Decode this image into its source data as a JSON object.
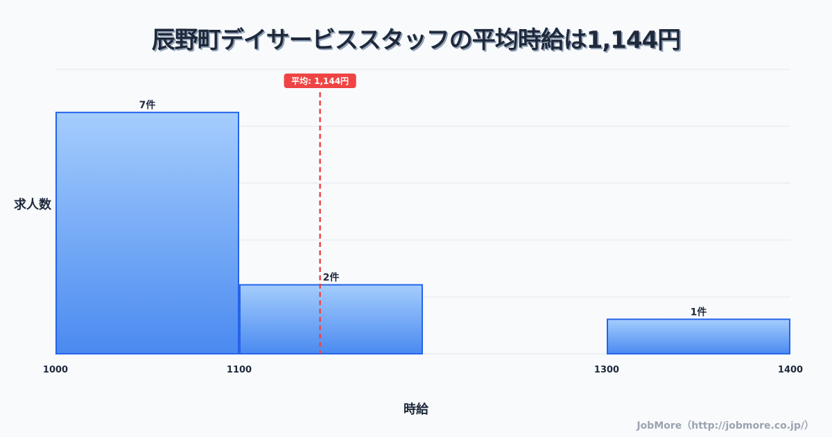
{
  "chart_data": {
    "type": "bar",
    "title": "辰野町デイサービススタッフの平均時給は1,144円",
    "xlabel": "時給",
    "ylabel": "求人数",
    "bins": [
      {
        "from": 1000,
        "to": 1100,
        "value": 7,
        "label": "7件"
      },
      {
        "from": 1100,
        "to": 1200,
        "value": 2,
        "label": "2件"
      },
      {
        "from": 1300,
        "to": 1400,
        "value": 1,
        "label": "1件"
      }
    ],
    "xticks": [
      1000,
      1100,
      1300,
      1400
    ],
    "xtick_labels": [
      "1000",
      "1100",
      "1300",
      "1400"
    ],
    "xlim": [
      1000,
      1400
    ],
    "ylim": [
      0,
      8.25
    ],
    "grid": true,
    "mean": {
      "value": 1144,
      "label": "平均: 1,144円",
      "color": "#ef4444"
    },
    "colors": {
      "bar_top": "#a5cdfd",
      "bar_bottom": "#4a8af0",
      "bar_stroke": "#2563eb"
    }
  },
  "footer": "JobMore（http://jobmore.co.jp/）"
}
